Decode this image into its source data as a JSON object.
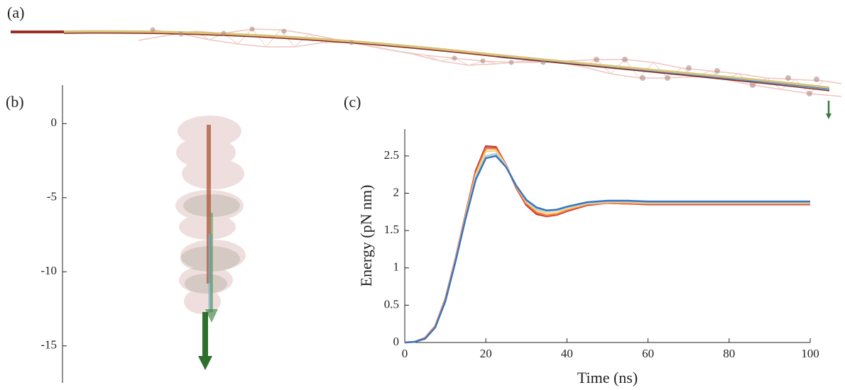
{
  "panel_labels": [
    "(a)",
    "(b)",
    "(c)"
  ],
  "chart_data": [
    {
      "type": "axis",
      "ylim": [
        -17.5,
        2.6
      ],
      "yticks": [
        0,
        -5,
        -10,
        -15
      ]
    },
    {
      "type": "line",
      "xlabel": "Time (ns)",
      "ylabel": "Energy (pN nm)",
      "xlim": [
        0,
        100
      ],
      "ylim": [
        0,
        2.86
      ],
      "xticks": [
        0,
        20,
        40,
        60,
        80,
        100
      ],
      "yticks": [
        0,
        0.5,
        1,
        1.5,
        2,
        2.5
      ],
      "x": [
        0,
        2.5,
        5,
        7.5,
        10,
        12.5,
        15,
        17.5,
        20,
        22.5,
        25,
        27.5,
        30,
        32.5,
        35,
        37.5,
        40,
        45,
        50,
        55,
        60,
        70,
        80,
        90,
        100
      ],
      "series": [
        {
          "color": "#c0392b",
          "values": [
            0,
            0.01,
            0.06,
            0.22,
            0.58,
            1.12,
            1.72,
            2.3,
            2.63,
            2.62,
            2.38,
            2.07,
            1.84,
            1.72,
            1.69,
            1.71,
            1.76,
            1.84,
            1.87,
            1.86,
            1.85,
            1.85,
            1.85,
            1.85,
            1.85
          ]
        },
        {
          "color": "#f46d43",
          "values": [
            0,
            0.01,
            0.06,
            0.22,
            0.57,
            1.11,
            1.71,
            2.27,
            2.6,
            2.6,
            2.38,
            2.08,
            1.86,
            1.74,
            1.7,
            1.72,
            1.77,
            1.85,
            1.87,
            1.86,
            1.86,
            1.86,
            1.86,
            1.86,
            1.86
          ]
        },
        {
          "color": "#f8d778",
          "values": [
            0,
            0.01,
            0.05,
            0.21,
            0.56,
            1.1,
            1.69,
            2.24,
            2.56,
            2.57,
            2.37,
            2.09,
            1.88,
            1.77,
            1.73,
            1.74,
            1.79,
            1.86,
            1.88,
            1.88,
            1.87,
            1.87,
            1.87,
            1.87,
            1.87
          ]
        },
        {
          "color": "#a6d3e8",
          "values": [
            0,
            0.01,
            0.05,
            0.2,
            0.55,
            1.09,
            1.67,
            2.2,
            2.5,
            2.53,
            2.36,
            2.1,
            1.9,
            1.79,
            1.76,
            1.77,
            1.81,
            1.87,
            1.89,
            1.89,
            1.88,
            1.88,
            1.88,
            1.88,
            1.88
          ]
        },
        {
          "color": "#3f72b8",
          "values": [
            0,
            0.01,
            0.05,
            0.2,
            0.55,
            1.08,
            1.66,
            2.18,
            2.47,
            2.5,
            2.35,
            2.1,
            1.91,
            1.81,
            1.77,
            1.78,
            1.82,
            1.88,
            1.9,
            1.9,
            1.89,
            1.89,
            1.89,
            1.89,
            1.89
          ]
        }
      ]
    }
  ]
}
